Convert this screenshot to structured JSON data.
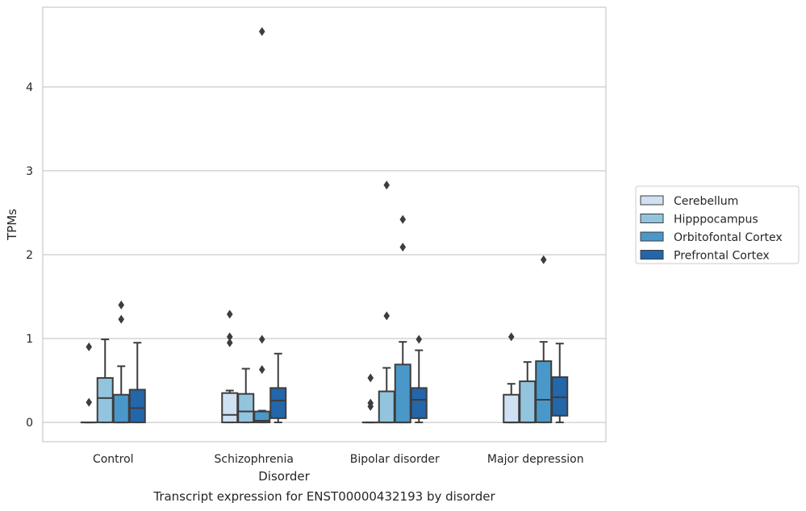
{
  "chart_data": {
    "type": "box",
    "title": "",
    "caption": "Transcript expression for ENST00000432193 by disorder",
    "xlabel": "Disorder",
    "ylabel": "TPMs",
    "ylim": [
      -0.23,
      4.95
    ],
    "yticks": [
      0,
      1,
      2,
      3,
      4
    ],
    "grid": "horizontal",
    "legend_position": "right",
    "categories": [
      "Control",
      "Schizophrenia",
      "Bipolar disorder",
      "Major depression"
    ],
    "series": [
      {
        "name": "Cerebellum",
        "color": "#cfe1f2",
        "boxes": [
          {
            "whislo": 0.0,
            "q1": 0.0,
            "med": 0.0,
            "q3": 0.0,
            "whishi": 0.0,
            "fliers": [
              0.9,
              0.24
            ]
          },
          {
            "whislo": 0.0,
            "q1": 0.0,
            "med": 0.09,
            "q3": 0.35,
            "whishi": 0.38,
            "fliers": [
              1.29,
              1.02,
              0.95
            ]
          },
          {
            "whislo": 0.0,
            "q1": 0.0,
            "med": 0.0,
            "q3": 0.0,
            "whishi": 0.0,
            "fliers": [
              0.53,
              0.23,
              0.19
            ]
          },
          {
            "whislo": 0.0,
            "q1": 0.0,
            "med": 0.0,
            "q3": 0.33,
            "whishi": 0.46,
            "fliers": [
              1.02
            ]
          }
        ]
      },
      {
        "name": "Hipppocampus",
        "color": "#93c4de",
        "boxes": [
          {
            "whislo": 0.0,
            "q1": 0.0,
            "med": 0.29,
            "q3": 0.53,
            "whishi": 0.99,
            "fliers": []
          },
          {
            "whislo": 0.0,
            "q1": 0.0,
            "med": 0.13,
            "q3": 0.34,
            "whishi": 0.64,
            "fliers": []
          },
          {
            "whislo": 0.0,
            "q1": 0.0,
            "med": 0.0,
            "q3": 0.37,
            "whishi": 0.65,
            "fliers": [
              2.83,
              1.27
            ]
          },
          {
            "whislo": 0.0,
            "q1": 0.0,
            "med": 0.0,
            "q3": 0.49,
            "whishi": 0.72,
            "fliers": []
          }
        ]
      },
      {
        "name": "Orbitofontal Cortex",
        "color": "#4a98c9",
        "boxes": [
          {
            "whislo": 0.0,
            "q1": 0.0,
            "med": 0.0,
            "q3": 0.33,
            "whishi": 0.67,
            "fliers": [
              1.4,
              1.23
            ]
          },
          {
            "whislo": 0.0,
            "q1": 0.0,
            "med": 0.02,
            "q3": 0.13,
            "whishi": 0.14,
            "fliers": [
              4.66,
              0.99,
              0.63
            ]
          },
          {
            "whislo": 0.0,
            "q1": 0.0,
            "med": 0.0,
            "q3": 0.69,
            "whishi": 0.96,
            "fliers": [
              2.42,
              2.09
            ]
          },
          {
            "whislo": 0.0,
            "q1": 0.0,
            "med": 0.27,
            "q3": 0.73,
            "whishi": 0.96,
            "fliers": [
              1.94
            ]
          }
        ]
      },
      {
        "name": "Prefrontal Cortex",
        "color": "#2366aa",
        "boxes": [
          {
            "whislo": 0.0,
            "q1": 0.0,
            "med": 0.17,
            "q3": 0.39,
            "whishi": 0.95,
            "fliers": []
          },
          {
            "whislo": 0.0,
            "q1": 0.05,
            "med": 0.26,
            "q3": 0.41,
            "whishi": 0.82,
            "fliers": []
          },
          {
            "whislo": 0.0,
            "q1": 0.05,
            "med": 0.27,
            "q3": 0.41,
            "whishi": 0.86,
            "fliers": [
              0.99
            ]
          },
          {
            "whislo": 0.0,
            "q1": 0.08,
            "med": 0.3,
            "q3": 0.54,
            "whishi": 0.94,
            "fliers": []
          }
        ]
      }
    ]
  }
}
